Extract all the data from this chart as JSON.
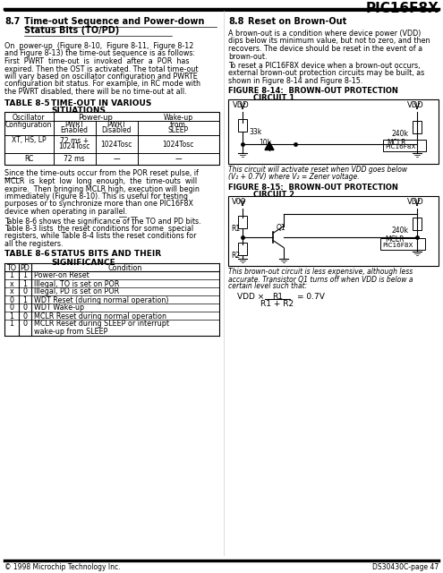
{
  "title": "PIC16F8X",
  "footer_left": "© 1998 Microchip Technology Inc.",
  "footer_right": "DS30430C-page 47",
  "bg_color": "#ffffff",
  "text_color": "#000000",
  "table86_data": [
    [
      "1",
      "1",
      "Power-on Reset"
    ],
    [
      "x",
      "1",
      "Illegal, TO is set on POR"
    ],
    [
      "x",
      "0",
      "Illegal, PD is set on POR"
    ],
    [
      "0",
      "1",
      "WDT Reset (during normal operation)"
    ],
    [
      "0",
      "0",
      "WDT Wake-up"
    ],
    [
      "1",
      "0",
      "MCLR Reset during normal operation"
    ],
    [
      "1",
      "0",
      "MCLR Reset during SLEEP or interrupt\nwake-up from SLEEP"
    ]
  ]
}
